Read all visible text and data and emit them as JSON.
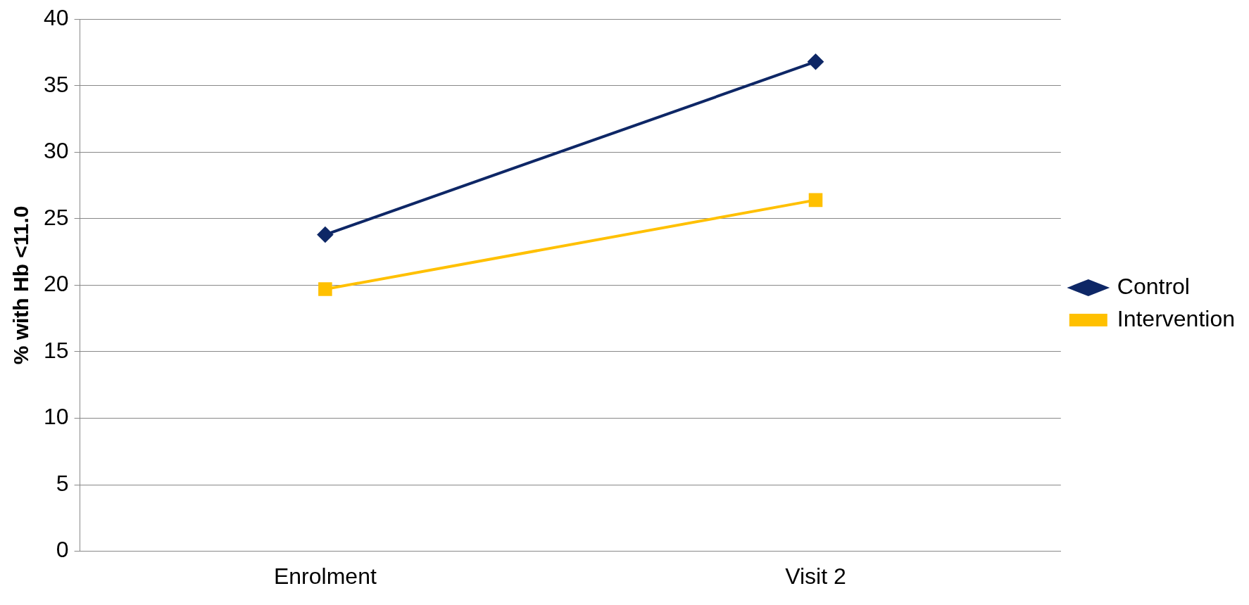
{
  "chart_data": {
    "type": "line",
    "ylabel": "% with Hb <11.0",
    "categories": [
      "Enrolment",
      "Visit 2"
    ],
    "series": [
      {
        "name": "Control",
        "color": "#0e2766",
        "marker": "diamond",
        "values": [
          23.8,
          36.8
        ]
      },
      {
        "name": "Intervention",
        "color": "#ffc000",
        "marker": "square",
        "values": [
          19.7,
          26.4
        ]
      }
    ],
    "ylim": [
      0,
      40
    ],
    "yticks": [
      0,
      5,
      10,
      15,
      20,
      25,
      30,
      35,
      40
    ],
    "grid": "y",
    "legend": "right",
    "line_style": "solid"
  }
}
